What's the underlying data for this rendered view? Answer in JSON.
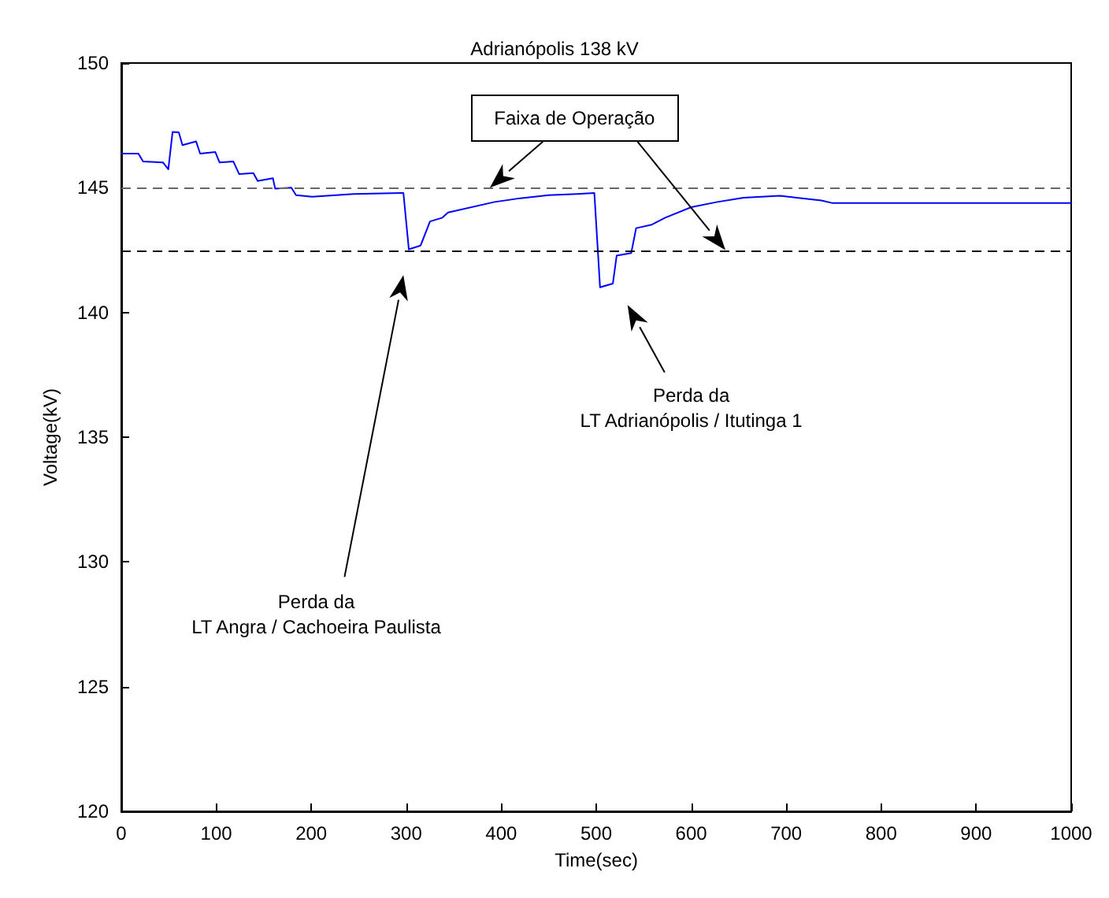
{
  "chart_data": {
    "type": "line",
    "title": "Adrianópolis 138 kV",
    "xlabel": "Time(sec)",
    "ylabel": "Voltage(kV)",
    "x": [
      0,
      18,
      23,
      44,
      49.5,
      54,
      60.5,
      64.4,
      78.7,
      83,
      99,
      103.5,
      118,
      124,
      139,
      143.6,
      159.6,
      162,
      179,
      184,
      201,
      245,
      297,
      302.7,
      315,
      325,
      338,
      344,
      393,
      420,
      450,
      480,
      498,
      504,
      517.5,
      521.5,
      536.8,
      542,
      558.5,
      572.6,
      600,
      627.5,
      655,
      693.5,
      737,
      748,
      1000
    ],
    "series": [
      {
        "color": "#0000ff",
        "values": [
          146.37,
          146.37,
          146.05,
          146.01,
          145.74,
          147.24,
          147.22,
          146.71,
          146.86,
          146.37,
          146.43,
          146.01,
          146.05,
          145.55,
          145.59,
          145.27,
          145.38,
          144.96,
          145.0,
          144.7,
          144.64,
          144.75,
          144.79,
          142.53,
          142.68,
          143.65,
          143.8,
          144.01,
          144.43,
          144.58,
          144.7,
          144.75,
          144.79,
          141.01,
          141.16,
          142.28,
          142.38,
          143.38,
          143.52,
          143.8,
          144.22,
          144.43,
          144.6,
          144.68,
          144.49,
          144.39,
          144.39
        ]
      }
    ],
    "xlim": [
      0,
      1000
    ],
    "xticks": [
      0,
      100,
      200,
      300,
      400,
      500,
      600,
      700,
      800,
      900,
      1000
    ],
    "ylim": [
      120,
      150
    ],
    "yticks": [
      120,
      125,
      130,
      135,
      140,
      145,
      150
    ],
    "grid": false,
    "marker": "none",
    "line_style": "solid",
    "ref_lines": [
      {
        "axis": "y",
        "value": 145,
        "label": null,
        "color": "#666666",
        "line_style": "dashed"
      },
      {
        "axis": "y",
        "value": 142.5,
        "label": null,
        "color": "#000000",
        "line_style": "dashed"
      }
    ],
    "annotations": [
      "Faixa de Operação",
      "Perda da\nLT Angra / Cachoeira Paulista",
      "Perda da\nLT Adrianópolis / Itutinga 1"
    ]
  }
}
